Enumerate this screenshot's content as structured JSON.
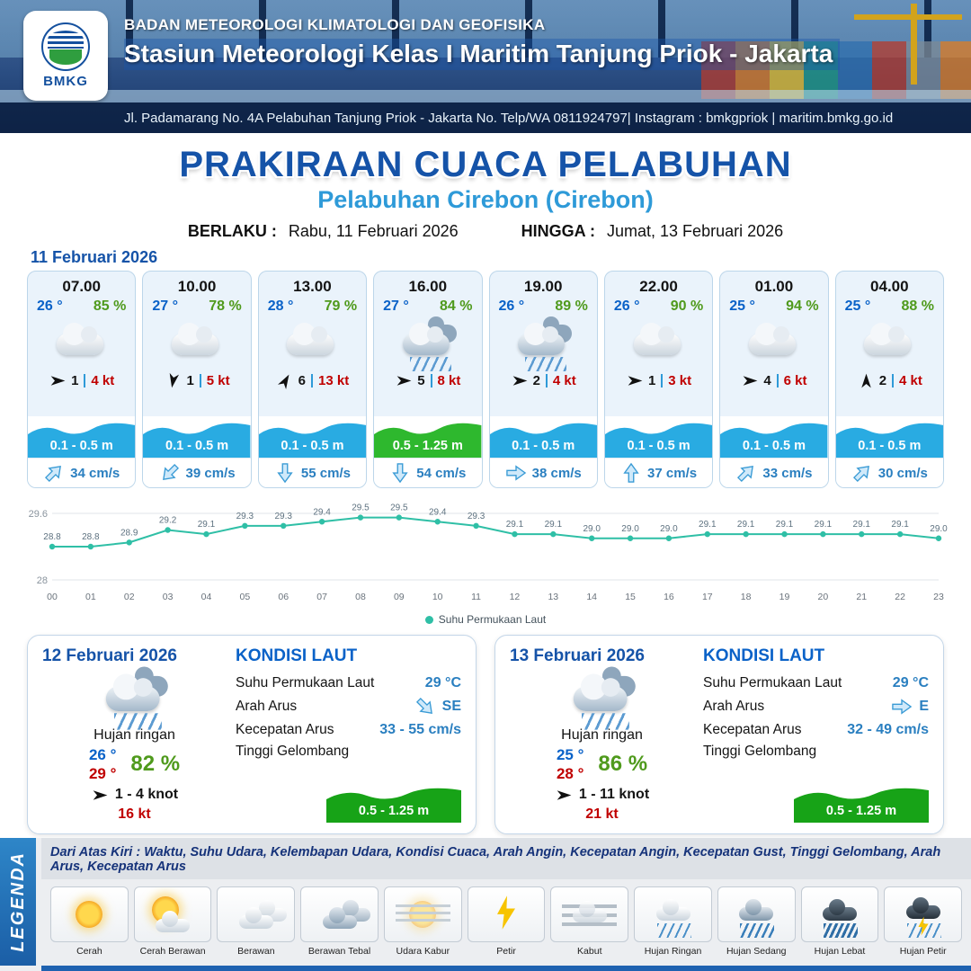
{
  "colors": {
    "accent_blue": "#1553a8",
    "accent_light_blue": "#2e9ad8",
    "wave_blue": "#29abe2",
    "wave_green": "#2eb82e",
    "humidity_green": "#4f9a1c",
    "gust_red": "#c00000"
  },
  "header": {
    "logo_text": "BMKG",
    "org": "BADAN METEOROLOGI KLIMATOLOGI DAN GEOFISIKA",
    "station": "Stasiun Meteorologi Kelas I Maritim Tanjung Priok - Jakarta",
    "address": "Jl. Padamarang No. 4A Pelabuhan Tanjung Priok - Jakarta No. Telp/WA 0811924797| Instagram : bmkgpriok | maritim.bmkg.go.id"
  },
  "title": {
    "main": "PRAKIRAAN CUACA PELABUHAN",
    "sub": "Pelabuhan Cirebon (Cirebon)",
    "berlaku_label": "BERLAKU :",
    "berlaku_value": "Rabu, 11 Februari 2026",
    "hingga_label": "HINGGA :",
    "hingga_value": "Jumat, 13 Februari 2026"
  },
  "day1": {
    "date": "11 Februari 2026",
    "cards": [
      {
        "time": "07.00",
        "temp": "26 °",
        "rh": "85 %",
        "icon": "cloudy",
        "wind": "1",
        "gust": "4 kt",
        "wind_deg": 0,
        "wave": "0.1 - 0.5 m",
        "wave_color": "#29abe2",
        "current": "34 cm/s",
        "current_deg": -45
      },
      {
        "time": "10.00",
        "temp": "27 °",
        "rh": "78 %",
        "icon": "cloudy",
        "wind": "1",
        "gust": "5 kt",
        "wind_deg": 100,
        "wave": "0.1 - 0.5 m",
        "wave_color": "#29abe2",
        "current": "39 cm/s",
        "current_deg": 135
      },
      {
        "time": "13.00",
        "temp": "28 °",
        "rh": "79 %",
        "icon": "cloudy",
        "wind": "6",
        "gust": "13 kt",
        "wind_deg": -60,
        "wave": "0.1 - 0.5 m",
        "wave_color": "#29abe2",
        "current": "55 cm/s",
        "current_deg": 90
      },
      {
        "time": "16.00",
        "temp": "27 °",
        "rh": "84 %",
        "icon": "rain",
        "wind": "5",
        "gust": "8 kt",
        "wind_deg": 0,
        "wave": "0.5 - 1.25 m",
        "wave_color": "#2eb82e",
        "current": "54 cm/s",
        "current_deg": 90
      },
      {
        "time": "19.00",
        "temp": "26 °",
        "rh": "89 %",
        "icon": "rain",
        "wind": "2",
        "gust": "4 kt",
        "wind_deg": 0,
        "wave": "0.1 - 0.5 m",
        "wave_color": "#29abe2",
        "current": "38 cm/s",
        "current_deg": 0
      },
      {
        "time": "22.00",
        "temp": "26 °",
        "rh": "90 %",
        "icon": "cloudy",
        "wind": "1",
        "gust": "3 kt",
        "wind_deg": 0,
        "wave": "0.1 - 0.5 m",
        "wave_color": "#29abe2",
        "current": "37 cm/s",
        "current_deg": -90
      },
      {
        "time": "01.00",
        "temp": "25 °",
        "rh": "94 %",
        "icon": "cloudy",
        "wind": "4",
        "gust": "6 kt",
        "wind_deg": 0,
        "wave": "0.1 - 0.5 m",
        "wave_color": "#29abe2",
        "current": "33 cm/s",
        "current_deg": -45
      },
      {
        "time": "04.00",
        "temp": "25 °",
        "rh": "88 %",
        "icon": "cloudy",
        "wind": "2",
        "gust": "4 kt",
        "wind_deg": -90,
        "wave": "0.1 - 0.5 m",
        "wave_color": "#29abe2",
        "current": "30 cm/s",
        "current_deg": -45
      }
    ]
  },
  "chart_data": {
    "type": "line",
    "x": [
      "00",
      "01",
      "02",
      "03",
      "04",
      "05",
      "06",
      "07",
      "08",
      "09",
      "10",
      "11",
      "12",
      "13",
      "14",
      "15",
      "16",
      "17",
      "18",
      "19",
      "20",
      "21",
      "22",
      "23"
    ],
    "values": [
      28.8,
      28.8,
      28.9,
      29.2,
      29.1,
      29.3,
      29.3,
      29.4,
      29.5,
      29.5,
      29.4,
      29.3,
      29.1,
      29.1,
      29.0,
      29.0,
      29.0,
      29.1,
      29.1,
      29.1,
      29.1,
      29.1,
      29.1,
      29.0
    ],
    "ylim": [
      28,
      29.6
    ],
    "yticks": [
      "29.6",
      "28"
    ],
    "legend": "Suhu Permukaan Laut",
    "line_color": "#2fbfa6",
    "grid": true,
    "legend_position": "bottom-center"
  },
  "days": [
    {
      "date": "12 Februari 2026",
      "condition": "Hujan ringan",
      "temp_min": "26 °",
      "temp_max": "29 °",
      "rh": "82 %",
      "wind_range": "1  - 4 knot",
      "gust": "16 kt",
      "wind_deg": 0,
      "sea_title": "KONDISI LAUT",
      "sst_label": "Suhu Permukaan Laut",
      "sst": "29 °C",
      "arus_dir_label": "Arah Arus",
      "arus_dir": "SE",
      "arus_deg": 45,
      "arus_speed_label": "Kecepatan Arus",
      "arus_speed": "33  - 55 cm/s",
      "wave_label": "Tinggi Gelombang",
      "wave": "0.5 - 1.25 m",
      "wave_color": "#17a317"
    },
    {
      "date": "13 Februari 2026",
      "condition": "Hujan ringan",
      "temp_min": "25 °",
      "temp_max": "28 °",
      "rh": "86 %",
      "wind_range": "1  - 11 knot",
      "gust": "21 kt",
      "wind_deg": 0,
      "sea_title": "KONDISI LAUT",
      "sst_label": "Suhu Permukaan Laut",
      "sst": "29 °C",
      "arus_dir_label": "Arah Arus",
      "arus_dir": "E",
      "arus_deg": 0,
      "arus_speed_label": "Kecepatan Arus",
      "arus_speed": "32 - 49 cm/s",
      "wave_label": "Tinggi Gelombang",
      "wave": "0.5 - 1.25 m",
      "wave_color": "#17a317"
    }
  ],
  "legend": {
    "title": "LEGENDA",
    "note": "Dari Atas Kiri : Waktu, Suhu Udara, Kelembapan Udara, Kondisi Cuaca, Arah Angin, Kecepatan Angin, Kecepatan Gust, Tinggi Gelombang, Arah Arus, Kecepatan Arus",
    "items": [
      {
        "label": "Cerah",
        "type": "cerah"
      },
      {
        "label": "Cerah Berawan",
        "type": "cerah-berawan"
      },
      {
        "label": "Berawan",
        "type": "berawan"
      },
      {
        "label": "Berawan Tebal",
        "type": "berawan-tebal"
      },
      {
        "label": "Udara Kabur",
        "type": "udara-kabur"
      },
      {
        "label": "Petir",
        "type": "petir"
      },
      {
        "label": "Kabut",
        "type": "kabut"
      },
      {
        "label": "Hujan Ringan",
        "type": "hujan-ringan"
      },
      {
        "label": "Hujan Sedang",
        "type": "hujan-sedang"
      },
      {
        "label": "Hujan Lebat",
        "type": "hujan-lebat"
      },
      {
        "label": "Hujan Petir",
        "type": "hujan-petir"
      }
    ]
  }
}
